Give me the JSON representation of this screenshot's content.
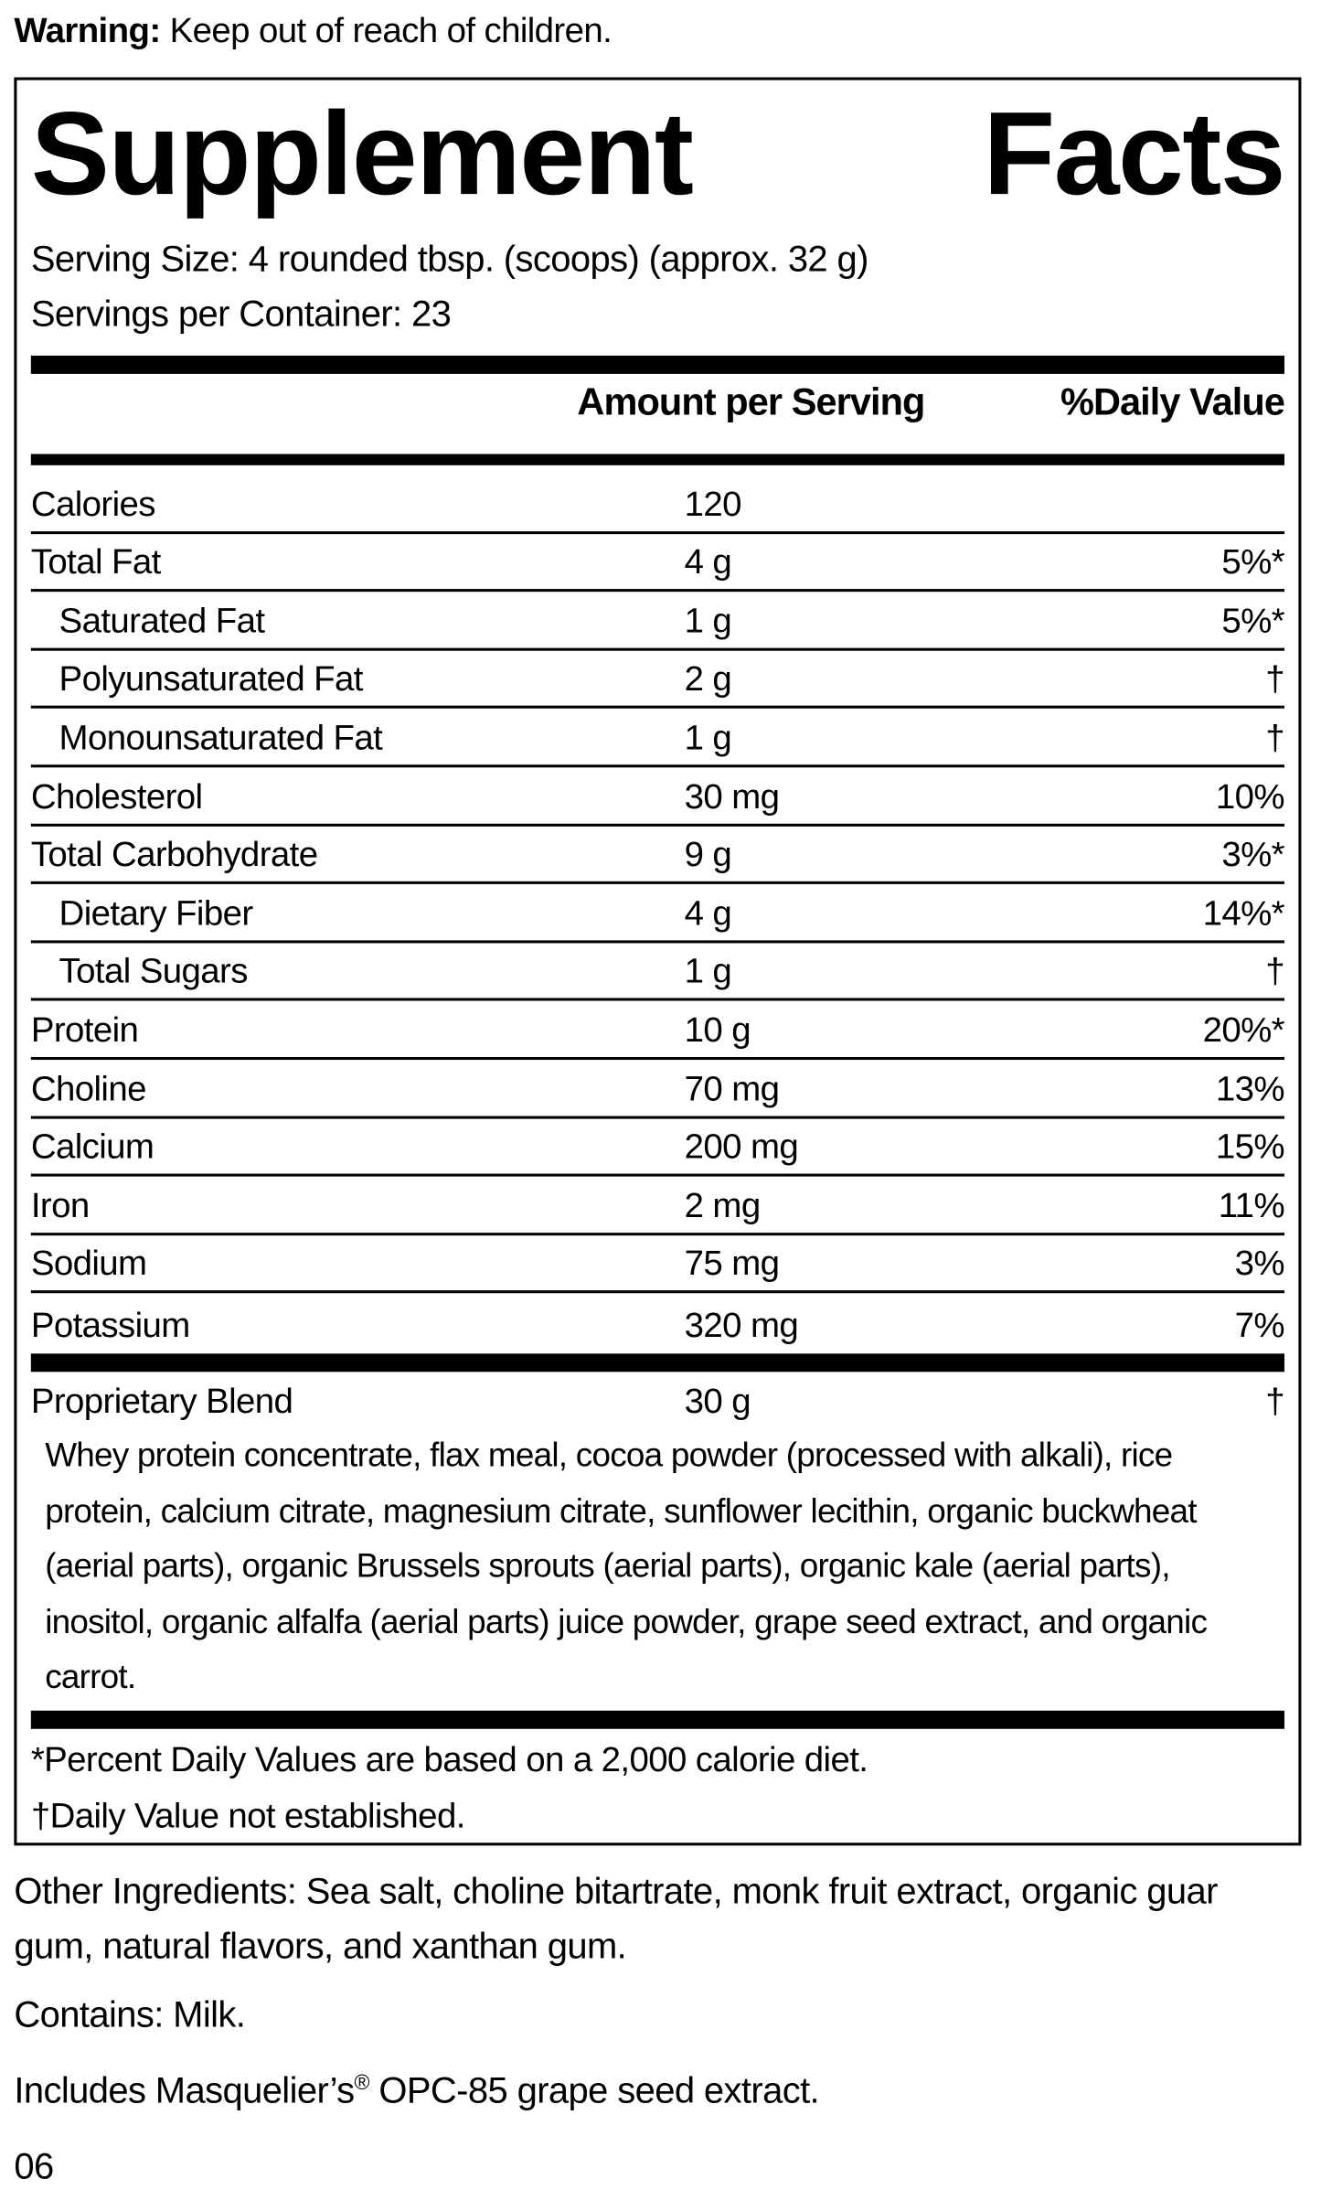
{
  "warning": {
    "label": "Warning:",
    "text": "Keep out of reach of children."
  },
  "panel": {
    "title": "Supplement Facts",
    "serving_size": "Serving Size: 4 rounded tbsp. (scoops) (approx. 32 g)",
    "servings_per_container": "Servings per Container: 23",
    "header": {
      "amount": "Amount per Serving",
      "daily_value": "%Daily Value"
    },
    "rows": [
      [
        "Calories",
        "120"
      ],
      [
        "Total Fat",
        "4 g",
        "5%*"
      ],
      [
        "Saturated Fat",
        "1 g",
        "5%*"
      ],
      [
        "Polyunsaturated Fat",
        "2 g",
        "†"
      ],
      [
        "Monounsaturated Fat",
        "1 g",
        "†"
      ],
      [
        "Cholesterol",
        "30 mg",
        "10%"
      ],
      [
        "Total Carbohydrate",
        "9 g",
        "3%*"
      ],
      [
        "Dietary Fiber",
        "4 g",
        "14%*"
      ],
      [
        "Total Sugars",
        "1 g",
        "†"
      ],
      [
        "Protein",
        "10 g",
        "20%*"
      ],
      [
        "Choline",
        "70 mg",
        "13%"
      ],
      [
        "Calcium",
        "200 mg",
        "15%"
      ],
      [
        "Iron",
        "2 mg",
        "11%"
      ],
      [
        "Sodium",
        "75 mg",
        "3%"
      ],
      [
        "Potassium",
        "320 mg",
        "7%"
      ]
    ],
    "blend": {
      "name": "Proprietary Blend",
      "amount": "30 g",
      "daily_value": "†",
      "ingredients": "Whey protein concentrate, flax meal, cocoa powder (processed with alkali), rice protein, calcium citrate, magnesium citrate, sunflower lecithin, organic buckwheat (aerial parts), organic Brussels sprouts (aerial parts), organic kale (aerial parts), inositol, organic alfalfa (aerial parts) juice powder, grape seed extract, and organic carrot."
    },
    "footnotes": [
      "*Percent Daily Values are based on a 2,000 calorie diet.",
      "†Daily Value not established."
    ]
  },
  "other_ingredients": "Other Ingredients: Sea salt, choline bitartrate, monk fruit extract, organic guar gum, natural flavors, and xanthan gum.",
  "contains": "Contains: Milk.",
  "includes": {
    "before": "Includes Masquelier’s",
    "mark": "®",
    "after": " OPC-85 grape seed extract."
  },
  "code": "06"
}
